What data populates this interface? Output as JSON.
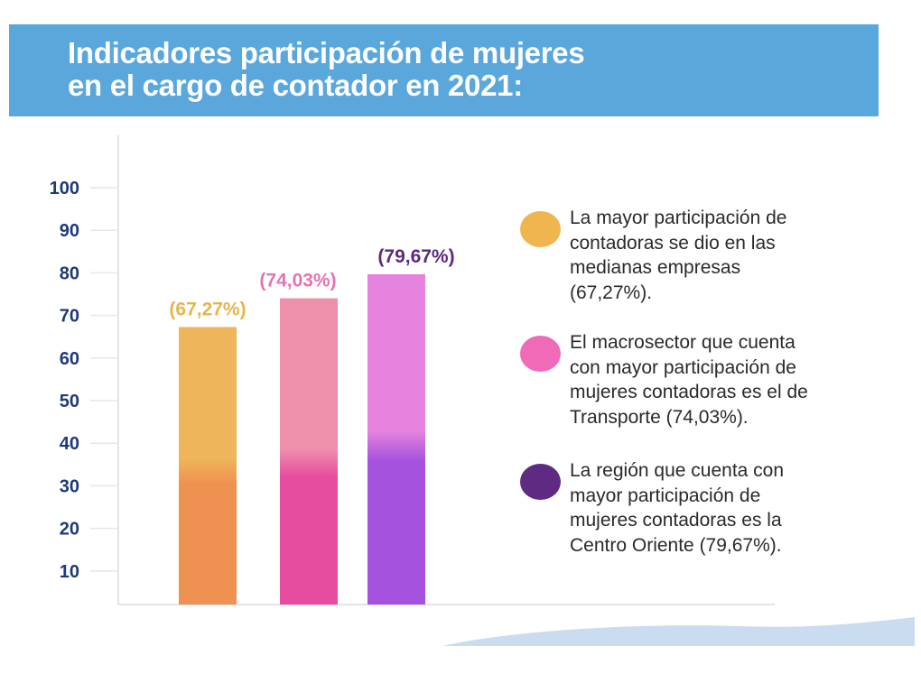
{
  "header": {
    "title_lines": [
      "Indicadores participación de mujeres",
      "en el cargo de contador en 2021:"
    ]
  },
  "chart_data": {
    "type": "bar",
    "title": "Indicadores participación de mujeres en el cargo de contador en 2021:",
    "categories": [
      "medianas empresas",
      "Transporte",
      "Centro Oriente"
    ],
    "values": [
      67.27,
      74.03,
      79.67
    ],
    "data_labels": [
      "(67,27%)",
      "(74,03%)",
      "(79,67%)"
    ],
    "yticks": [
      10,
      20,
      30,
      40,
      50,
      60,
      70,
      80,
      90,
      100
    ],
    "ylim": [
      0,
      100
    ],
    "xlabel": "",
    "ylabel": "",
    "grid": false,
    "legend_placement": "right",
    "colors": {
      "bars_top": [
        "#efb55a",
        "#ee8fab",
        "#e683de"
      ],
      "bars_bottom": [
        "#ef9150",
        "#e64d9f",
        "#a553de"
      ],
      "labels": [
        "#e8b44a",
        "#e673b0",
        "#5b2a7e"
      ],
      "ticks": "#1d3a78"
    }
  },
  "legend": [
    {
      "color": "#efb54f",
      "lines": [
        "La mayor participación de",
        "contadoras se dio en las",
        "medianas empresas",
        "(67,27%)."
      ]
    },
    {
      "color": "#f06ab8",
      "lines": [
        "El macrosector que cuenta",
        "con mayor participación de",
        "mujeres contadoras es el de",
        "Transporte (74,03%)."
      ]
    },
    {
      "color": "#5e2a82",
      "lines": [
        "La región que cuenta con",
        "mayor participación de",
        "mujeres contadoras es la",
        "Centro Oriente (79,67%)."
      ]
    }
  ]
}
